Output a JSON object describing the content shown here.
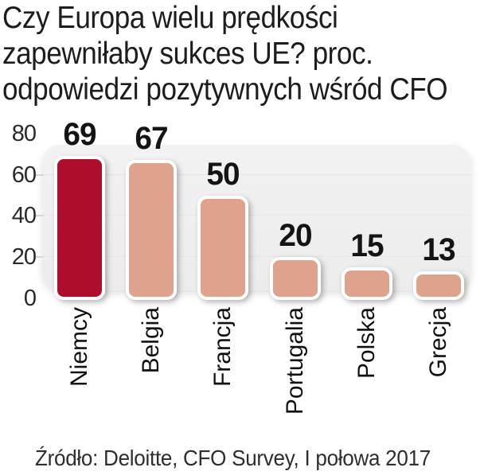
{
  "title": {
    "lines": [
      "Czy Europa wielu prędkości",
      "zapewniłaby sukces UE? proc.",
      "odpowiedzi pozytywnych wśród CFO"
    ]
  },
  "source": "Źródło: Deloitte, CFO Survey, I połowa 2017",
  "chart_data": {
    "type": "bar",
    "title": "Czy Europa wielu prędkości zapewniłaby sukces UE? proc. odpowiedzi pozytywnych wśród CFO",
    "categories": [
      "Niemcy",
      "Belgia",
      "Francja",
      "Portugalia",
      "Polska",
      "Grecja"
    ],
    "values": [
      69,
      67,
      50,
      20,
      15,
      13
    ],
    "xlabel": "",
    "ylabel": "",
    "ylim": [
      0,
      80
    ],
    "yticks": [
      0,
      20,
      40,
      60,
      80
    ],
    "grid": "horizontal",
    "legend": "none",
    "value_labels": "above-bars",
    "category_label_rotation": -90,
    "highlight_index": 0,
    "colors": {
      "highlight_bar": "#ae0d2c",
      "normal_bar": "#dfa28c",
      "bar_border": "#ffffff",
      "plot_background": "#f0efef",
      "gridline": "#dedcdc",
      "text": "#1d1d1d"
    }
  }
}
